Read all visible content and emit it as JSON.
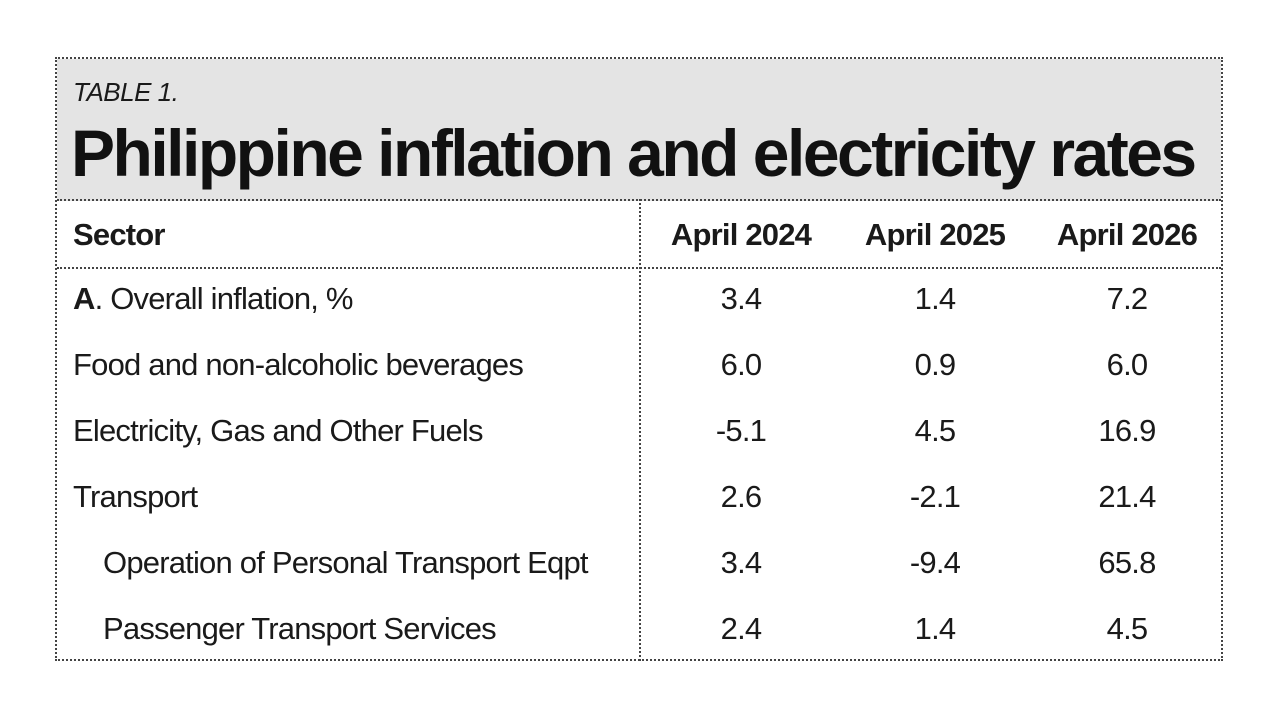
{
  "table": {
    "label": "TABLE 1.",
    "title": "Philippine inflation and electricity rates",
    "headers": {
      "sector": "Sector",
      "col1": "April 2024",
      "col2": "April 2025",
      "col3": "April 2026"
    },
    "rows": [
      {
        "prefix": "A",
        "label": ". Overall inflation, %",
        "v2024": "3.4",
        "v2025": "1.4",
        "v2026": "7.2"
      },
      {
        "prefix": "",
        "label": "Food and non-alcoholic beverages",
        "v2024": "6.0",
        "v2025": "0.9",
        "v2026": "6.0"
      },
      {
        "prefix": "",
        "label": "Electricity, Gas and Other Fuels",
        "v2024": "-5.1",
        "v2025": "4.5",
        "v2026": "16.9"
      },
      {
        "prefix": "",
        "label": "Transport",
        "v2024": "2.6",
        "v2025": "-2.1",
        "v2026": "21.4"
      },
      {
        "prefix": "",
        "label": "Operation of Personal Transport Eqpt",
        "v2024": "3.4",
        "v2025": "-9.4",
        "v2026": "65.8",
        "indent": true
      },
      {
        "prefix": "",
        "label": "Passenger Transport Services",
        "v2024": "2.4",
        "v2025": "1.4",
        "v2026": "4.5",
        "indent": true
      }
    ]
  }
}
